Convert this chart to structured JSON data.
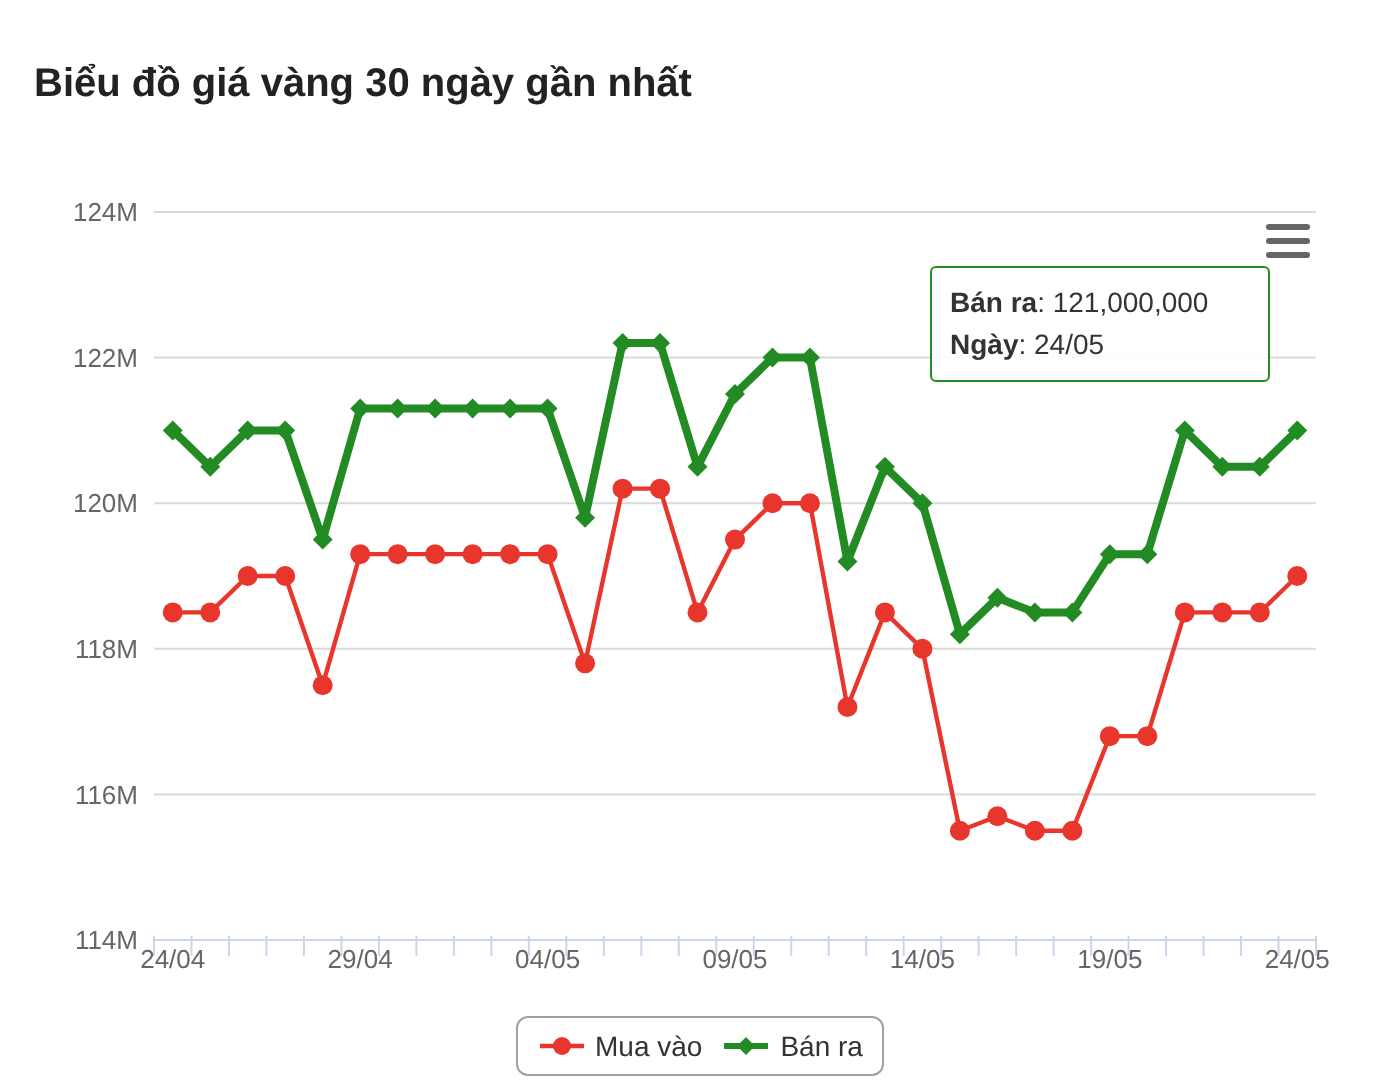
{
  "chart_data": {
    "type": "line",
    "title": "Biểu đồ giá vàng 30 ngày gần nhất",
    "categories": [
      "24/04",
      null,
      null,
      null,
      null,
      "29/04",
      null,
      null,
      null,
      null,
      "04/05",
      null,
      null,
      null,
      null,
      "09/05",
      null,
      null,
      null,
      null,
      "14/05",
      null,
      null,
      null,
      null,
      "19/05",
      null,
      null,
      null,
      null,
      "24/05"
    ],
    "series": [
      {
        "name": "Mua vào",
        "color": "#e8362c",
        "marker": "circle",
        "values": [
          118.5,
          118.5,
          119,
          119,
          117.5,
          119.3,
          119.3,
          119.3,
          119.3,
          119.3,
          119.3,
          117.8,
          120.2,
          120.2,
          118.5,
          119.5,
          120,
          120,
          117.2,
          118.5,
          118,
          115.5,
          115.7,
          115.5,
          115.5,
          116.8,
          116.8,
          118.5,
          118.5,
          118.5,
          119
        ]
      },
      {
        "name": "Bán ra",
        "color": "#238b23",
        "marker": "diamond",
        "values": [
          121,
          120.5,
          121,
          121,
          119.5,
          121.3,
          121.3,
          121.3,
          121.3,
          121.3,
          121.3,
          119.8,
          122.2,
          122.2,
          120.5,
          121.5,
          122,
          122,
          119.2,
          120.5,
          120,
          118.2,
          118.7,
          118.5,
          118.5,
          119.3,
          119.3,
          121,
          120.5,
          120.5,
          121
        ]
      }
    ],
    "ylim": [
      114,
      124
    ],
    "yticks": [
      {
        "value": 114,
        "label": "114M"
      },
      {
        "value": 116,
        "label": "116M"
      },
      {
        "value": 118,
        "label": "118M"
      },
      {
        "value": 120,
        "label": "120M"
      },
      {
        "value": 122,
        "label": "122M"
      },
      {
        "value": 124,
        "label": "124M"
      }
    ],
    "grid": "y",
    "legend": "bottom",
    "line_style": "solid",
    "annotations": [
      "Bán ra: 121,000,000\nNgày: 24/05"
    ]
  }
}
